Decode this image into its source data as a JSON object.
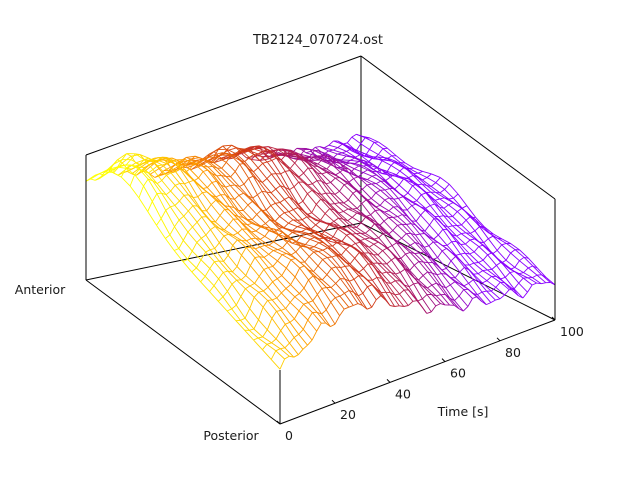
{
  "chart_data": {
    "type": "surface",
    "title": "TB2124_070724.ost",
    "x_axis": {
      "label": "Time [s]",
      "range": [
        0,
        100
      ],
      "ticks": [
        0,
        20,
        40,
        60,
        80,
        100
      ]
    },
    "y_axis": {
      "start_label": "Posterior",
      "end_label": "Anterior"
    },
    "z_axis": {
      "tick_labels": false
    },
    "mesh": {
      "style": "wireframe",
      "colormap": [
        "#ffff00",
        "#ff9900",
        "#d23a14",
        "#a10f7a",
        "#8a00ff"
      ],
      "time_columns": 60,
      "position_rows": 22
    }
  }
}
